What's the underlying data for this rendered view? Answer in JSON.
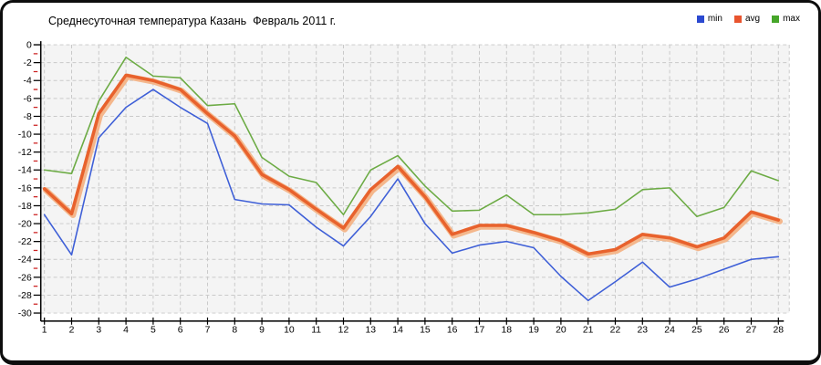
{
  "title": "Среднесуточная температура Казань  Февраль 2011 г.",
  "legend": [
    {
      "label": "min",
      "color": "#2b49d0"
    },
    {
      "label": "avg",
      "color": "#e8542e"
    },
    {
      "label": "max",
      "color": "#46a62a"
    }
  ],
  "theme": {
    "plot_bg": "#f4f4f4",
    "grid_color": "#c9c9c9",
    "axis_color": "#000000",
    "minor_tick_color": "#cc2222",
    "label_color": "#000000"
  },
  "chart_data": {
    "type": "line",
    "title": "Среднесуточная температура Казань  Февраль 2011 г.",
    "xlabel": "",
    "ylabel": "",
    "categories": [
      1,
      2,
      3,
      4,
      5,
      6,
      7,
      8,
      9,
      10,
      11,
      12,
      13,
      14,
      15,
      16,
      17,
      18,
      19,
      20,
      21,
      22,
      23,
      24,
      25,
      26,
      27,
      28
    ],
    "ylim": [
      -30,
      0
    ],
    "ytick_step": 2,
    "yminor_step": 1,
    "grid": true,
    "legend_position": "top-right",
    "series": [
      {
        "name": "min",
        "color": "#3e5fd7",
        "width": 1.6,
        "values": [
          -19.0,
          -23.5,
          -10.4,
          -7.0,
          -5.0,
          -7.0,
          -8.8,
          -17.3,
          -17.8,
          -17.9,
          -20.4,
          -22.5,
          -19.2,
          -15.0,
          -20.0,
          -23.3,
          -22.4,
          -22.0,
          -22.7,
          -25.9,
          -28.6,
          -26.5,
          -24.3,
          -27.1,
          -26.2,
          -25.1,
          -24.0,
          -23.7
        ]
      },
      {
        "name": "avg",
        "color": "#e8622d",
        "halo": "#f4b78c",
        "width": 3.6,
        "values": [
          -16.1,
          -18.9,
          -7.7,
          -3.4,
          -4.0,
          -5.0,
          -7.7,
          -10.2,
          -14.5,
          -16.2,
          -18.4,
          -20.5,
          -16.2,
          -13.6,
          -17.0,
          -21.2,
          -20.2,
          -20.2,
          -21.0,
          -21.9,
          -23.4,
          -22.9,
          -21.2,
          -21.6,
          -22.6,
          -21.6,
          -18.7,
          -19.6
        ]
      },
      {
        "name": "max",
        "color": "#6cab44",
        "width": 1.6,
        "values": [
          -14.0,
          -14.4,
          -6.3,
          -1.4,
          -3.5,
          -3.7,
          -6.8,
          -6.6,
          -12.6,
          -14.7,
          -15.4,
          -19.0,
          -14.0,
          -12.4,
          -15.8,
          -18.6,
          -18.5,
          -16.8,
          -19.0,
          -19.0,
          -18.8,
          -18.4,
          -16.2,
          -16.0,
          -19.2,
          -18.2,
          -14.1,
          -15.2
        ]
      }
    ]
  }
}
